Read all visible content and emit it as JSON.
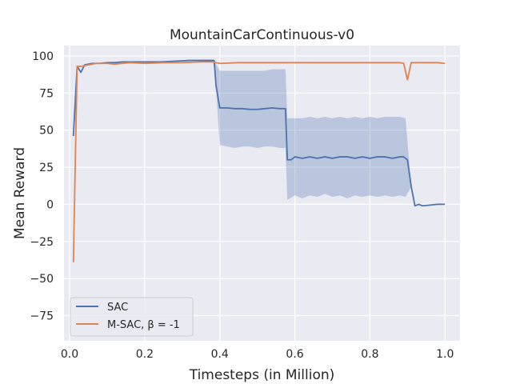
{
  "chart_data": {
    "type": "line",
    "title": "MountainCarContinuous-v0",
    "xlabel": "Timesteps (in Million)",
    "ylabel": "Mean Reward",
    "xlim": [
      -0.015,
      1.04
    ],
    "ylim": [
      -92,
      107
    ],
    "xticks": [
      0.0,
      0.2,
      0.4,
      0.6,
      0.8,
      1.0
    ],
    "xtick_labels": [
      "0.0",
      "0.2",
      "0.4",
      "0.6",
      "0.8",
      "1.0"
    ],
    "yticks": [
      -75,
      -50,
      -25,
      0,
      25,
      50,
      75,
      100
    ],
    "ytick_labels": [
      "−75",
      "−50",
      "−25",
      "0",
      "25",
      "50",
      "75",
      "100"
    ],
    "grid": true,
    "legend_position": "lower-left",
    "colors": {
      "background": "#eaeaf2",
      "grid": "#ffffff",
      "sac": "#4c72b0",
      "msac": "#dd8452"
    },
    "series": [
      {
        "name": "SAC",
        "color": "#4c72b0",
        "x": [
          0.01,
          0.02,
          0.03,
          0.04,
          0.06,
          0.08,
          0.1,
          0.12,
          0.14,
          0.16,
          0.2,
          0.24,
          0.28,
          0.32,
          0.36,
          0.385,
          0.39,
          0.4,
          0.42,
          0.44,
          0.46,
          0.48,
          0.5,
          0.52,
          0.54,
          0.56,
          0.575,
          0.58,
          0.59,
          0.6,
          0.62,
          0.64,
          0.66,
          0.68,
          0.7,
          0.72,
          0.74,
          0.76,
          0.78,
          0.8,
          0.82,
          0.84,
          0.86,
          0.88,
          0.89,
          0.9,
          0.91,
          0.92,
          0.93,
          0.94,
          0.96,
          0.98,
          1.0
        ],
        "y": [
          46,
          93,
          89,
          94,
          95,
          95,
          95.5,
          95.5,
          96,
          96,
          96,
          96,
          96.5,
          97,
          97,
          97,
          80,
          65,
          65,
          64.5,
          64.5,
          64,
          64,
          64.5,
          65,
          64.5,
          64.5,
          30,
          30,
          32,
          31,
          32,
          31,
          32,
          31,
          32,
          32,
          31,
          32,
          31,
          32,
          32,
          31,
          32,
          32,
          30,
          12,
          -1,
          0,
          -1,
          -0.5,
          0,
          0
        ],
        "band_x": [
          0.385,
          0.4,
          0.42,
          0.44,
          0.46,
          0.48,
          0.5,
          0.52,
          0.54,
          0.56,
          0.575,
          0.58,
          0.6,
          0.62,
          0.64,
          0.66,
          0.68,
          0.7,
          0.72,
          0.74,
          0.76,
          0.78,
          0.8,
          0.82,
          0.84,
          0.86,
          0.88,
          0.895,
          0.91
        ],
        "band_upper": [
          97,
          90,
          90,
          90,
          90,
          90,
          90,
          90,
          91,
          91,
          91,
          58,
          58,
          58,
          59,
          58,
          59,
          58,
          59,
          58,
          59,
          58,
          59,
          58,
          59,
          59,
          59,
          58,
          12
        ],
        "band_lower": [
          97,
          40,
          39,
          38,
          39,
          39,
          38,
          39,
          39,
          38,
          38,
          3,
          6,
          4,
          6,
          5,
          7,
          5,
          6,
          4,
          6,
          5,
          6,
          5,
          6,
          5,
          6,
          5,
          12
        ]
      },
      {
        "name": "M-SAC, β = -1",
        "color": "#dd8452",
        "x": [
          0.01,
          0.02,
          0.03,
          0.05,
          0.07,
          0.1,
          0.12,
          0.14,
          0.16,
          0.2,
          0.25,
          0.3,
          0.35,
          0.38,
          0.4,
          0.45,
          0.5,
          0.55,
          0.6,
          0.65,
          0.7,
          0.75,
          0.8,
          0.85,
          0.88,
          0.89,
          0.9,
          0.91,
          0.92,
          0.95,
          0.98,
          1.0
        ],
        "y": [
          -39,
          93,
          93,
          94,
          95,
          95,
          94.5,
          95,
          95.5,
          95,
          95.5,
          95.5,
          96,
          96,
          95,
          95.5,
          95.5,
          95.5,
          95.5,
          95.5,
          95.5,
          95.5,
          95.5,
          95.5,
          95.5,
          95,
          84,
          95.5,
          95.5,
          95.5,
          95.5,
          95
        ]
      }
    ]
  }
}
